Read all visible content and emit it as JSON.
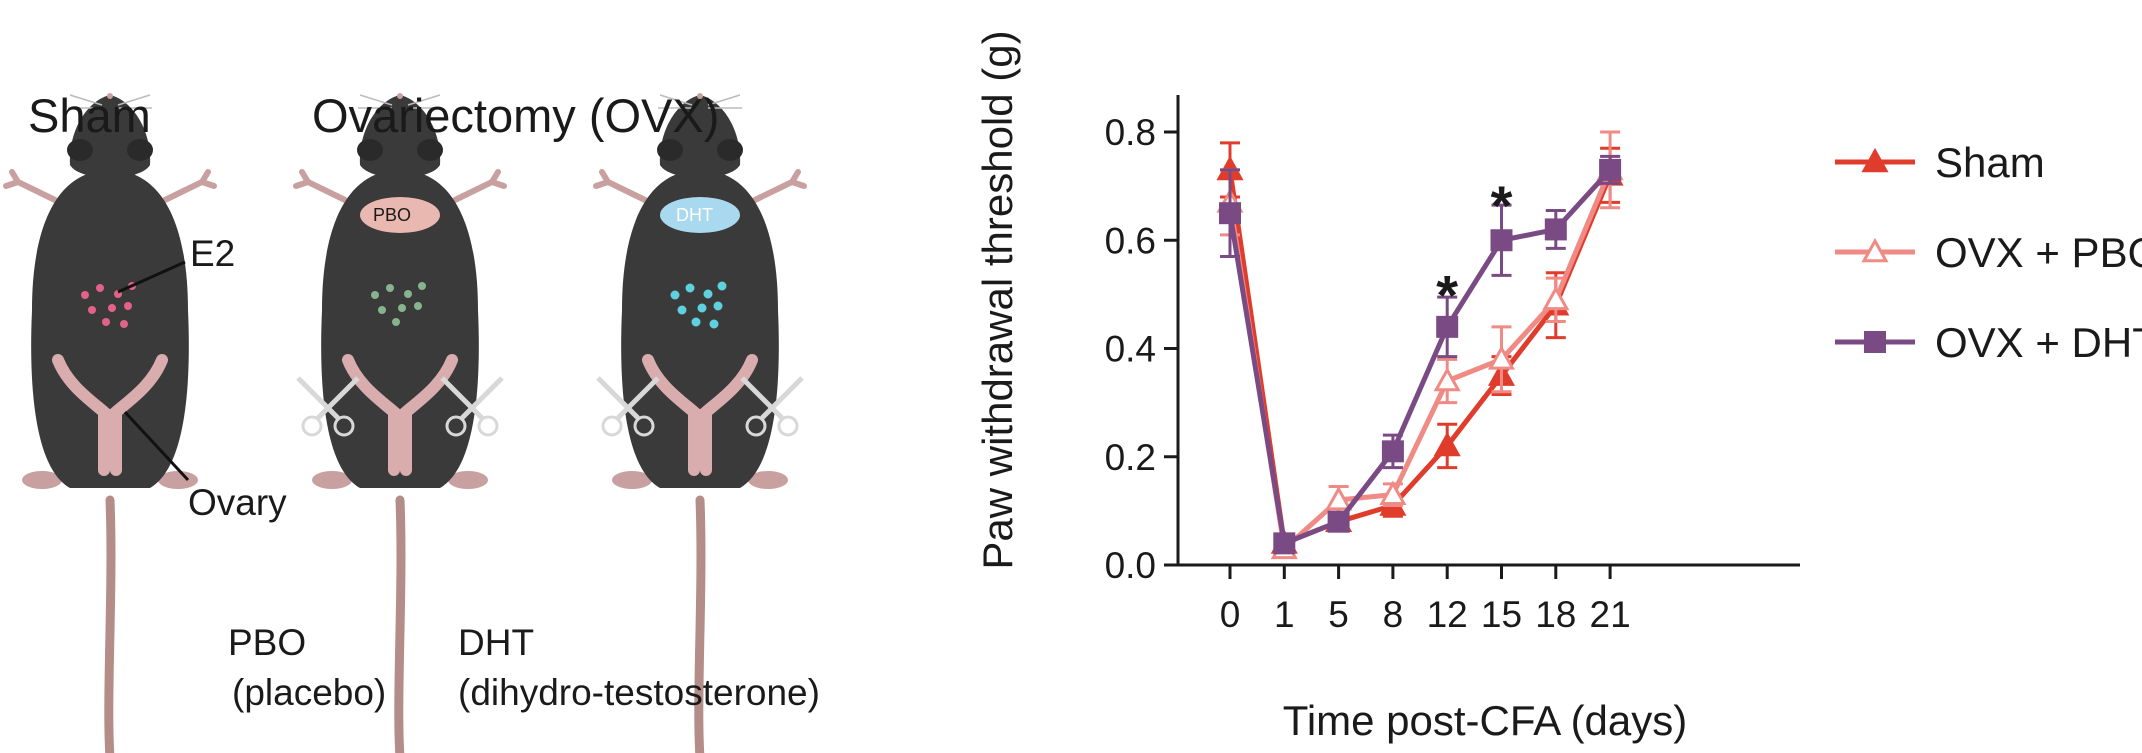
{
  "illustration": {
    "group_labels": {
      "sham": "Sham",
      "ovx": "Ovariectomy (OVX)"
    },
    "badges": {
      "pbo": "PBO",
      "dht": "DHT"
    },
    "annotations": {
      "e2": "E2",
      "ovary": "Ovary"
    },
    "legend_pbo": {
      "abbr": "PBO",
      "full": "(placebo)"
    },
    "legend_dht": {
      "abbr": "DHT",
      "full": "(dihydro-testosterone)"
    },
    "colors": {
      "fur": "#3a3a3a",
      "skin": "#c9a0a0",
      "e2_dots": "#e2628a",
      "pbo_dots": "#86b48f",
      "dht_dots": "#5fd0dd",
      "pbo_badge": "#e9b8b0",
      "dht_badge": "#a9d9ef"
    }
  },
  "chart_data": {
    "type": "line",
    "title": "",
    "xlabel": "Time post-CFA (days)",
    "ylabel": "Paw withdrawal threshold (g)",
    "categories": [
      "0",
      "1",
      "5",
      "8",
      "12",
      "15",
      "18",
      "21"
    ],
    "ylim": [
      0,
      0.8
    ],
    "yticks": [
      "0.0",
      "0.2",
      "0.4",
      "0.6",
      "0.8"
    ],
    "grid": false,
    "legend_position": "top-right",
    "series": [
      {
        "name": "Sham",
        "marker": "triangle-filled",
        "color": "#e03c2c",
        "values": [
          0.73,
          0.04,
          0.08,
          0.11,
          0.22,
          0.35,
          0.48,
          0.72
        ],
        "errors": [
          0.05,
          0.01,
          0.015,
          0.02,
          0.04,
          0.035,
          0.06,
          0.05
        ]
      },
      {
        "name": "OVX + PBO",
        "marker": "triangle-open",
        "color": "#ef8a84",
        "values": [
          0.67,
          0.03,
          0.12,
          0.13,
          0.34,
          0.38,
          0.49,
          0.73
        ],
        "errors": [
          0.06,
          0.01,
          0.025,
          0.02,
          0.04,
          0.06,
          0.04,
          0.07
        ]
      },
      {
        "name": "OVX + DHT",
        "marker": "square-filled",
        "color": "#7a4a84",
        "values": [
          0.65,
          0.04,
          0.08,
          0.21,
          0.44,
          0.6,
          0.62,
          0.73
        ],
        "errors": [
          0.08,
          0.01,
          0.015,
          0.03,
          0.055,
          0.065,
          0.035,
          0.025
        ]
      }
    ],
    "annotations": [
      {
        "text": "*",
        "category": "12",
        "y": 0.5
      },
      {
        "text": "*",
        "category": "15",
        "y": 0.665
      }
    ]
  }
}
